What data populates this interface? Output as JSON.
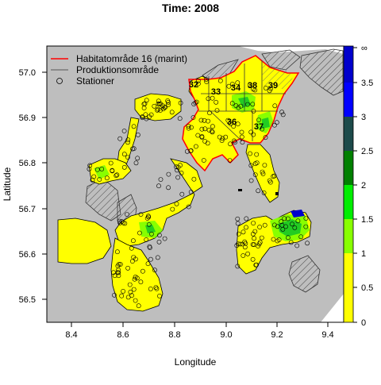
{
  "title": "Time: 2008",
  "xlabel": "Longitude",
  "ylabel": "Latitude",
  "x_ticks": [
    "8.4",
    "8.6",
    "8.8",
    "9.0",
    "9.2",
    "9.4"
  ],
  "y_ticks": [
    "56.5",
    "56.6",
    "56.7",
    "56.8",
    "56.9",
    "57.0"
  ],
  "legend": {
    "items": [
      {
        "label": "Habitatområde 16 (marint)",
        "kind": "line",
        "color": "#ff0000"
      },
      {
        "label": "Produktionsområde",
        "kind": "line",
        "color": "#555555"
      },
      {
        "label": "Stationer",
        "kind": "circle",
        "color": "#000000"
      }
    ]
  },
  "area_labels": [
    "32",
    "33",
    "34",
    "38",
    "39",
    "36",
    "37"
  ],
  "colorbar": {
    "labels": [
      "0",
      "0.5",
      "1",
      "1.5",
      "2",
      "2.5",
      "3",
      "3.5",
      "∞"
    ],
    "colors": [
      "#ffff00",
      "#ffff00",
      "#88ff00",
      "#00ee00",
      "#008000",
      "#1c4a4a",
      "#0000ff",
      "#0000cc"
    ]
  },
  "colors": {
    "land": "#bebebe",
    "water_low": "#ffff00",
    "water_mid": "#88ff00",
    "water_high": "#00cc00",
    "habitat_line": "#ff0000"
  },
  "chart_data": {
    "type": "heatmap",
    "title": "Time: 2008",
    "xlabel": "Longitude",
    "ylabel": "Latitude",
    "xlim": [
      8.3,
      9.48
    ],
    "ylim": [
      56.41,
      57.1
    ],
    "colorbar_breaks": [
      0,
      0.5,
      1,
      1.5,
      2,
      2.5,
      3,
      3.5,
      "∞"
    ]
  }
}
